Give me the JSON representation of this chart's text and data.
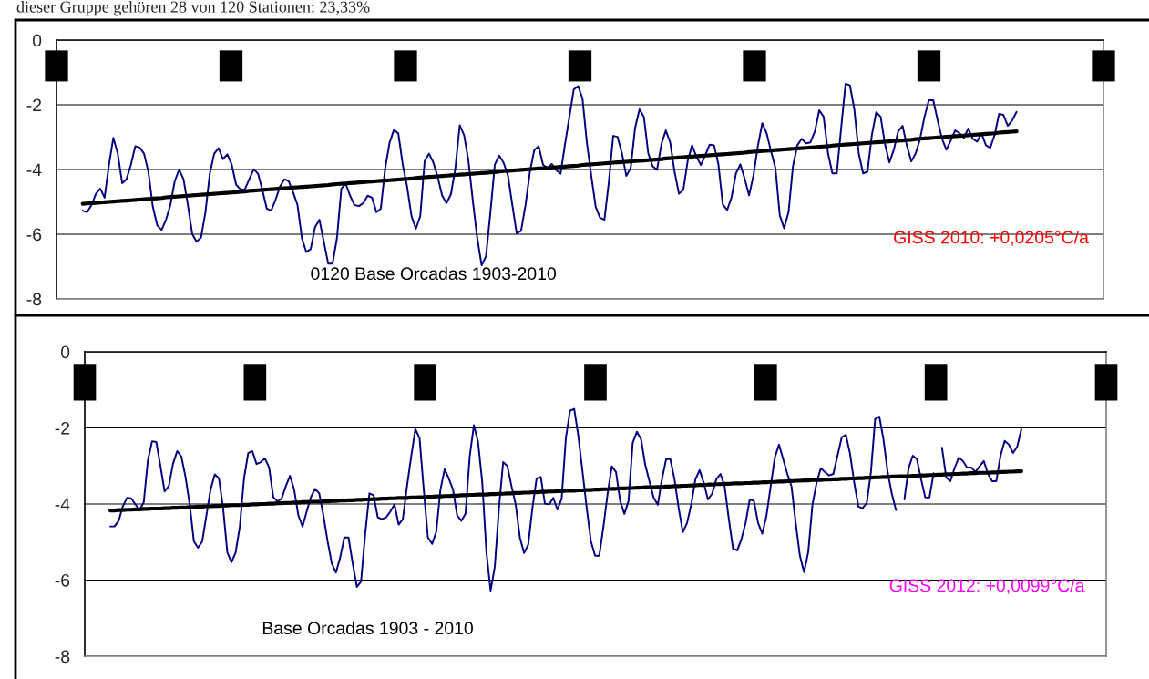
{
  "chart_data": [
    {
      "type": "line",
      "title": "dieser Gruppe gehören 28 von 120 Stationen: 23,33%",
      "categories": [
        null,
        null,
        null,
        null,
        null,
        null,
        null,
        null,
        null,
        null,
        null,
        null,
        null,
        null,
        null,
        null,
        null,
        null,
        null,
        null,
        null,
        null,
        null,
        null,
        null,
        null,
        null,
        null,
        null,
        null,
        null,
        null,
        null,
        null,
        null,
        null,
        null,
        null,
        null,
        null,
        null,
        null,
        null,
        null,
        null,
        null,
        null,
        null,
        null,
        null,
        null,
        null,
        null,
        null,
        null,
        null,
        null,
        null,
        null,
        null,
        null,
        null,
        null,
        null,
        null,
        null,
        null,
        null,
        null,
        null,
        null,
        null,
        null,
        null,
        null,
        null,
        null,
        null,
        null,
        null,
        null,
        null,
        null,
        null,
        null,
        null,
        null,
        null,
        null,
        null,
        null,
        null,
        null,
        null,
        null,
        null,
        null,
        null,
        null,
        null,
        null,
        null,
        null,
        null,
        null,
        null,
        null,
        null,
        null,
        null,
        null,
        null,
        null,
        null,
        null,
        null,
        null,
        null,
        null,
        null,
        null,
        null,
        null,
        null,
        null,
        null,
        null,
        null,
        null,
        null,
        null,
        null,
        null,
        null,
        null,
        null,
        null,
        null,
        null,
        null,
        null,
        null,
        null,
        null,
        null,
        null,
        null,
        null,
        null,
        null,
        null,
        null,
        null,
        null,
        null,
        null,
        null,
        null,
        null,
        null,
        null,
        null,
        null,
        null,
        null,
        null,
        null,
        null,
        null,
        null,
        null,
        null,
        null,
        null,
        null,
        null,
        null,
        null,
        null,
        null,
        null,
        null,
        null,
        null,
        null,
        null,
        null,
        null,
        null,
        null,
        null,
        null,
        null,
        null,
        null,
        null,
        null,
        null,
        null,
        null,
        null,
        null,
        null,
        null,
        null,
        null,
        null,
        null,
        null,
        null,
        null,
        null,
        null,
        null
      ],
      "ylim": [
        -8,
        0
      ],
      "yticks": [
        -8,
        -6,
        -4,
        -2,
        0
      ],
      "grid": "y",
      "tick_labels": "y",
      "annotations": [
        "0120 Base Orcadas 1903-2010",
        "GISS 2010: +0,0205°C/a"
      ],
      "series": [
        {
          "color": "#000080",
          "values": [
            -5.27,
            -5.32,
            -5.1,
            -4.76,
            -4.59,
            -4.87,
            -3.85,
            -3.02,
            -3.51,
            -4.42,
            -4.3,
            -3.85,
            -3.28,
            -3.32,
            -3.51,
            -4.08,
            -5.15,
            -5.72,
            -5.87,
            -5.55,
            -5.1,
            -4.36,
            -4.0,
            -4.3,
            -5.1,
            -6.0,
            -6.23,
            -6.1,
            -5.32,
            -4.13,
            -3.51,
            -3.34,
            -3.68,
            -3.53,
            -3.85,
            -4.47,
            -4.62,
            -4.61,
            -4.3,
            -3.99,
            -4.13,
            -4.64,
            -5.21,
            -5.27,
            -4.93,
            -4.53,
            -4.3,
            -4.36,
            -4.7,
            -5.1,
            -6.12,
            -6.55,
            -6.46,
            -5.78,
            -5.55,
            -6.23,
            -6.91,
            -6.91,
            -6.12,
            -4.59,
            -4.44,
            -4.81,
            -5.1,
            -5.13,
            -5.04,
            -4.81,
            -4.87,
            -5.32,
            -5.21,
            -3.96,
            -3.17,
            -2.77,
            -2.89,
            -3.85,
            -4.53,
            -5.44,
            -5.83,
            -5.44,
            -3.74,
            -3.51,
            -3.79,
            -4.25,
            -4.81,
            -5.04,
            -4.76,
            -3.96,
            -2.63,
            -2.94,
            -3.74,
            -4.98,
            -6.12,
            -6.96,
            -6.68,
            -5.32,
            -3.85,
            -3.57,
            -3.79,
            -4.19,
            -5.1,
            -5.98,
            -5.89,
            -5.1,
            -4.08,
            -3.4,
            -3.28,
            -3.85,
            -3.96,
            -3.83,
            -4.02,
            -4.13,
            -3.23,
            -2.38,
            -1.53,
            -1.42,
            -1.81,
            -3.17,
            -4.19,
            -5.15,
            -5.49,
            -5.55,
            -4.4,
            -2.96,
            -2.99,
            -3.5,
            -4.2,
            -3.95,
            -2.71,
            -2.14,
            -2.37,
            -3.5,
            -3.9,
            -4.01,
            -3.22,
            -2.79,
            -3.16,
            -4.07,
            -4.75,
            -4.63,
            -3.73,
            -3.25,
            -3.61,
            -3.86,
            -3.56,
            -3.23,
            -3.25,
            -3.84,
            -5.08,
            -5.25,
            -4.86,
            -4.12,
            -3.84,
            -4.29,
            -4.8,
            -4.18,
            -3.27,
            -2.57,
            -2.88,
            -3.44,
            -3.95,
            -5.42,
            -5.82,
            -5.31,
            -3.9,
            -3.25,
            -3.05,
            -3.19,
            -3.16,
            -2.82,
            -2.17,
            -2.37,
            -3.5,
            -4.12,
            -4.12,
            -2.71,
            -1.35,
            -1.4,
            -2.14,
            -3.5,
            -4.12,
            -4.07,
            -2.93,
            -2.23,
            -2.37,
            -3.22,
            -3.78,
            -3.39,
            -2.82,
            -2.65,
            -3.27,
            -3.75,
            -3.5,
            -3.05,
            -2.37,
            -1.86,
            -1.86,
            -2.48,
            -3.05,
            -3.39,
            -3.1,
            -2.79,
            -2.88,
            -3.02,
            -2.73,
            -3.05,
            -3.14,
            -2.88,
            -3.25,
            -3.33,
            -2.93,
            -2.28,
            -2.31,
            -2.65,
            -2.48,
            -2.22
          ]
        },
        {
          "color": "#000000",
          "values": [
            -5.06,
            -5.05,
            -5.04,
            -5.03,
            -5.02,
            -5.01,
            -5.0,
            -4.99,
            -4.98,
            -4.97,
            -4.96,
            -4.95,
            -4.94,
            -4.93,
            -4.92,
            -4.91,
            -4.9,
            -4.89,
            -4.88,
            -4.86,
            -4.85,
            -4.84,
            -4.83,
            -4.82,
            -4.81,
            -4.8,
            -4.79,
            -4.78,
            -4.77,
            -4.76,
            -4.75,
            -4.74,
            -4.73,
            -4.72,
            -4.71,
            -4.7,
            -4.69,
            -4.68,
            -4.66,
            -4.65,
            -4.64,
            -4.63,
            -4.62,
            -4.61,
            -4.6,
            -4.59,
            -4.58,
            -4.57,
            -4.56,
            -4.55,
            -4.54,
            -4.53,
            -4.52,
            -4.51,
            -4.5,
            -4.49,
            -4.48,
            -4.46,
            -4.45,
            -4.44,
            -4.43,
            -4.42,
            -4.41,
            -4.4,
            -4.39,
            -4.38,
            -4.37,
            -4.36,
            -4.35,
            -4.34,
            -4.33,
            -4.32,
            -4.31,
            -4.3,
            -4.29,
            -4.28,
            -4.26,
            -4.25,
            -4.24,
            -4.23,
            -4.22,
            -4.21,
            -4.2,
            -4.19,
            -4.18,
            -4.17,
            -4.16,
            -4.15,
            -4.14,
            -4.13,
            -4.12,
            -4.11,
            -4.1,
            -4.09,
            -4.08,
            -4.06,
            -4.05,
            -4.04,
            -4.03,
            -4.02,
            -4.01,
            -4.0,
            -3.99,
            -3.98,
            -3.97,
            -3.96,
            -3.95,
            -3.94,
            -3.93,
            -3.92,
            -3.91,
            -3.9,
            -3.89,
            -3.88,
            -3.86,
            -3.85,
            -3.84,
            -3.83,
            -3.82,
            -3.81,
            -3.8,
            -3.79,
            -3.78,
            -3.77,
            -3.76,
            -3.75,
            -3.74,
            -3.73,
            -3.72,
            -3.71,
            -3.7,
            -3.69,
            -3.68,
            -3.66,
            -3.65,
            -3.64,
            -3.63,
            -3.62,
            -3.61,
            -3.6,
            -3.59,
            -3.58,
            -3.57,
            -3.56,
            -3.55,
            -3.54,
            -3.53,
            -3.52,
            -3.51,
            -3.5,
            -3.49,
            -3.48,
            -3.46,
            -3.45,
            -3.44,
            -3.43,
            -3.42,
            -3.41,
            -3.4,
            -3.39,
            -3.38,
            -3.37,
            -3.36,
            -3.35,
            -3.34,
            -3.33,
            -3.32,
            -3.31,
            -3.3,
            -3.29,
            -3.28,
            -3.26,
            -3.25,
            -3.24,
            -3.23,
            -3.22,
            -3.21,
            -3.2,
            -3.19,
            -3.18,
            -3.17,
            -3.16,
            -3.15,
            -3.14,
            -3.13,
            -3.12,
            -3.11,
            -3.1,
            -3.09,
            -3.08,
            -3.06,
            -3.05,
            -3.04,
            -3.03,
            -3.02,
            -3.01,
            -3.0,
            -2.99,
            -2.98,
            -2.97,
            -2.96,
            -2.95,
            -2.94,
            -2.93,
            -2.92,
            -2.91,
            -2.9,
            -2.89,
            -2.88,
            -2.86,
            -2.85,
            -2.84,
            -2.83,
            -2.82
          ]
        }
      ]
    },
    {
      "type": "line",
      "categories": [
        null,
        null,
        null,
        null,
        null,
        null,
        null,
        null,
        null,
        null,
        null,
        null,
        null,
        null,
        null,
        null,
        null,
        null,
        null,
        null,
        null,
        null,
        null,
        null,
        null,
        null,
        null,
        null,
        null,
        null,
        null,
        null,
        null,
        null,
        null,
        null,
        null,
        null,
        null,
        null,
        null,
        null,
        null,
        null,
        null,
        null,
        null,
        null,
        null,
        null,
        null,
        null,
        null,
        null,
        null,
        null,
        null,
        null,
        null,
        null,
        null,
        null,
        null,
        null,
        null,
        null,
        null,
        null,
        null,
        null,
        null,
        null,
        null,
        null,
        null,
        null,
        null,
        null,
        null,
        null,
        null,
        null,
        null,
        null,
        null,
        null,
        null,
        null,
        null,
        null,
        null,
        null,
        null,
        null,
        null,
        null,
        null,
        null,
        null,
        null,
        null,
        null,
        null,
        null,
        null,
        null,
        null,
        null,
        null,
        null,
        null,
        null,
        null,
        null,
        null,
        null,
        null,
        null,
        null,
        null,
        null,
        null,
        null,
        null,
        null,
        null,
        null,
        null,
        null,
        null,
        null,
        null,
        null,
        null,
        null,
        null,
        null,
        null,
        null,
        null,
        null,
        null,
        null,
        null,
        null,
        null,
        null,
        null,
        null,
        null,
        null,
        null,
        null,
        null,
        null,
        null,
        null,
        null,
        null,
        null,
        null,
        null,
        null,
        null,
        null,
        null,
        null,
        null,
        null,
        null,
        null,
        null,
        null,
        null,
        null,
        null,
        null,
        null,
        null,
        null,
        null,
        null,
        null,
        null,
        null,
        null,
        null,
        null,
        null,
        null,
        null,
        null,
        null,
        null,
        null,
        null,
        null,
        null,
        null,
        null,
        null,
        null,
        null,
        null,
        null,
        null,
        null,
        null,
        null,
        null,
        null,
        null,
        null,
        null,
        null,
        null,
        null,
        null,
        null
      ],
      "ylim": [
        -8,
        0
      ],
      "yticks": [
        -8,
        -6,
        -4,
        -2,
        0
      ],
      "grid": "y",
      "tick_labels": "y",
      "annotations": [
        "Base Orcadas 1903 - 2010",
        "GISS 2012: +0,0099°C/a"
      ],
      "series": [
        {
          "color": "#000080",
          "values": [
            -4.59,
            -4.59,
            -4.44,
            -4.06,
            -3.84,
            -3.85,
            -4.01,
            -4.15,
            -3.96,
            -2.85,
            -2.35,
            -2.37,
            -3.0,
            -3.67,
            -3.53,
            -2.95,
            -2.61,
            -2.75,
            -3.29,
            -4.01,
            -4.98,
            -5.15,
            -4.98,
            -4.3,
            -3.62,
            -3.22,
            -3.33,
            -4.11,
            -5.27,
            -5.53,
            -5.27,
            -4.59,
            -3.33,
            -2.66,
            -2.61,
            -2.95,
            -2.9,
            -2.8,
            -3.04,
            -3.82,
            -3.93,
            -3.86,
            -3.53,
            -3.26,
            -3.62,
            -4.3,
            -4.59,
            -4.2,
            -3.82,
            -3.6,
            -3.72,
            -4.3,
            -4.98,
            -5.56,
            -5.8,
            -5.41,
            -4.88,
            -4.88,
            -5.56,
            -6.18,
            -6.04,
            -4.78,
            -3.72,
            -3.77,
            -4.35,
            -4.4,
            -4.35,
            -4.2,
            -4.01,
            -4.54,
            -4.4,
            -3.53,
            -2.75,
            -2.03,
            -2.27,
            -3.62,
            -4.88,
            -5.05,
            -4.73,
            -3.62,
            -3.09,
            -3.33,
            -3.62,
            -4.3,
            -4.44,
            -4.25,
            -2.75,
            -1.93,
            -2.37,
            -3.43,
            -5.27,
            -6.28,
            -5.65,
            -4.11,
            -2.9,
            -3.0,
            -3.53,
            -4.01,
            -4.88,
            -5.29,
            -5.07,
            -4.11,
            -3.33,
            -3.29,
            -3.99,
            -4.01,
            -3.84,
            -4.15,
            -3.86,
            -2.27,
            -1.55,
            -1.5,
            -2.22,
            -3.16,
            -4.11,
            -4.98,
            -5.36,
            -5.36,
            -4.59,
            -3.73,
            -3.01,
            -3.16,
            -3.92,
            -4.26,
            -3.92,
            -2.39,
            -2.1,
            -2.3,
            -2.97,
            -3.4,
            -3.83,
            -4.02,
            -3.35,
            -2.82,
            -2.82,
            -3.35,
            -4.11,
            -4.74,
            -4.5,
            -4.02,
            -3.35,
            -3.11,
            -3.44,
            -3.88,
            -3.73,
            -3.35,
            -3.21,
            -3.54,
            -4.4,
            -5.17,
            -5.22,
            -4.93,
            -4.5,
            -3.88,
            -3.92,
            -4.5,
            -4.78,
            -4.31,
            -3.54,
            -2.78,
            -2.44,
            -2.82,
            -3.21,
            -3.54,
            -4.5,
            -5.36,
            -5.79,
            -5.26,
            -4.02,
            -3.44,
            -3.06,
            -3.16,
            -3.25,
            -3.21,
            -2.73,
            -2.25,
            -2.18,
            -2.68,
            -3.44,
            -4.07,
            -4.11,
            -3.97,
            -3.16,
            -1.77,
            -1.7,
            -2.3,
            -3.16,
            -3.73,
            -4.16,
            null,
            -3.88,
            -3.06,
            -2.73,
            -2.82,
            -3.35,
            -3.83,
            -3.83,
            -3.19,
            null,
            -2.52,
            -3.3,
            -3.4,
            -3.06,
            -2.78,
            -2.87,
            -3.04,
            -3.04,
            -3.16,
            -3.01,
            -2.87,
            -3.21,
            -3.4,
            -3.4,
            -2.73,
            -2.34,
            -2.44,
            -2.66,
            -2.49,
            -2.03
          ]
        },
        {
          "color": "#000000",
          "values": [
            -4.17,
            -4.17,
            -4.16,
            -4.16,
            -4.15,
            -4.15,
            -4.14,
            -4.14,
            -4.13,
            -4.13,
            -4.12,
            -4.12,
            -4.12,
            -4.11,
            -4.11,
            -4.1,
            -4.1,
            -4.09,
            -4.09,
            -4.08,
            -4.08,
            -4.07,
            -4.07,
            -4.06,
            -4.06,
            -4.05,
            -4.05,
            -4.04,
            -4.04,
            -4.03,
            -4.03,
            -4.03,
            -4.02,
            -4.02,
            -4.01,
            -4.01,
            -4.0,
            -4.0,
            -3.99,
            -3.99,
            -3.98,
            -3.98,
            -3.97,
            -3.97,
            -3.96,
            -3.96,
            -3.95,
            -3.95,
            -3.94,
            -3.94,
            -3.94,
            -3.93,
            -3.93,
            -3.92,
            -3.92,
            -3.91,
            -3.91,
            -3.9,
            -3.9,
            -3.89,
            -3.89,
            -3.88,
            -3.88,
            -3.87,
            -3.87,
            -3.86,
            -3.86,
            -3.85,
            -3.85,
            -3.84,
            -3.84,
            -3.84,
            -3.83,
            -3.83,
            -3.82,
            -3.82,
            -3.81,
            -3.81,
            -3.8,
            -3.8,
            -3.79,
            -3.79,
            -3.78,
            -3.78,
            -3.77,
            -3.77,
            -3.76,
            -3.76,
            -3.75,
            -3.75,
            -3.75,
            -3.74,
            -3.74,
            -3.73,
            -3.73,
            -3.72,
            -3.72,
            -3.71,
            -3.71,
            -3.7,
            -3.7,
            -3.69,
            -3.69,
            -3.68,
            -3.68,
            -3.67,
            -3.67,
            -3.66,
            -3.66,
            -3.65,
            -3.65,
            -3.65,
            -3.64,
            -3.64,
            -3.63,
            -3.63,
            -3.62,
            -3.62,
            -3.61,
            -3.61,
            -3.6,
            -3.6,
            -3.59,
            -3.59,
            -3.58,
            -3.58,
            -3.57,
            -3.57,
            -3.56,
            -3.56,
            -3.56,
            -3.55,
            -3.55,
            -3.54,
            -3.54,
            -3.53,
            -3.53,
            -3.52,
            -3.52,
            -3.51,
            -3.51,
            -3.5,
            -3.5,
            -3.49,
            -3.49,
            -3.48,
            -3.48,
            -3.47,
            -3.47,
            -3.46,
            -3.46,
            -3.46,
            -3.45,
            -3.45,
            -3.44,
            -3.44,
            -3.43,
            -3.43,
            -3.42,
            -3.42,
            -3.41,
            -3.41,
            -3.4,
            -3.4,
            -3.39,
            -3.39,
            -3.38,
            -3.38,
            -3.37,
            -3.37,
            -3.37,
            -3.36,
            -3.36,
            -3.35,
            -3.35,
            -3.34,
            -3.34,
            -3.33,
            -3.33,
            -3.32,
            -3.32,
            -3.31,
            -3.31,
            -3.3,
            -3.3,
            -3.29,
            -3.29,
            -3.28,
            -3.28,
            -3.27,
            -3.27,
            -3.27,
            -3.26,
            -3.26,
            -3.25,
            -3.25,
            -3.24,
            -3.24,
            -3.23,
            -3.23,
            -3.22,
            -3.22,
            -3.21,
            -3.21,
            -3.2,
            -3.2,
            -3.19,
            -3.19,
            -3.18,
            -3.18,
            -3.18,
            -3.17,
            -3.17,
            -3.16,
            -3.16,
            -3.15,
            -3.15,
            -3.14,
            -3.14
          ]
        }
      ]
    }
  ]
}
